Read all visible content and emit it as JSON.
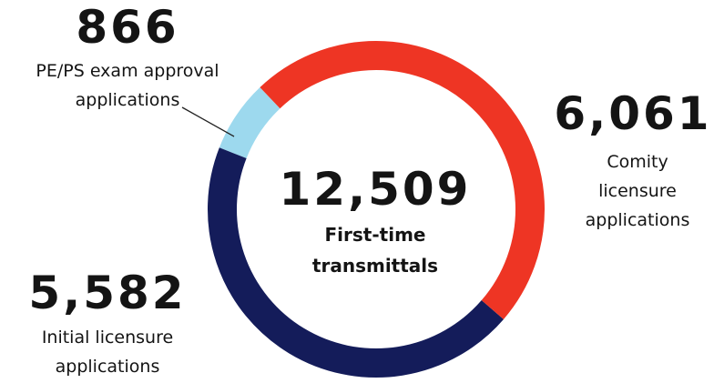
{
  "chart_data": {
    "type": "donut",
    "categories": [
      "Comity licensure applications",
      "Initial licensure applications",
      "PE/PS exam approval applications"
    ],
    "values": [
      6061,
      5582,
      866
    ],
    "value_labels": [
      "6,061",
      "5,582",
      "866"
    ],
    "colors": [
      "#ee3524",
      "#141c5a",
      "#9dd9ee"
    ],
    "total": {
      "value": 12509,
      "label": "12,509",
      "text": "First-time transmittals"
    }
  }
}
